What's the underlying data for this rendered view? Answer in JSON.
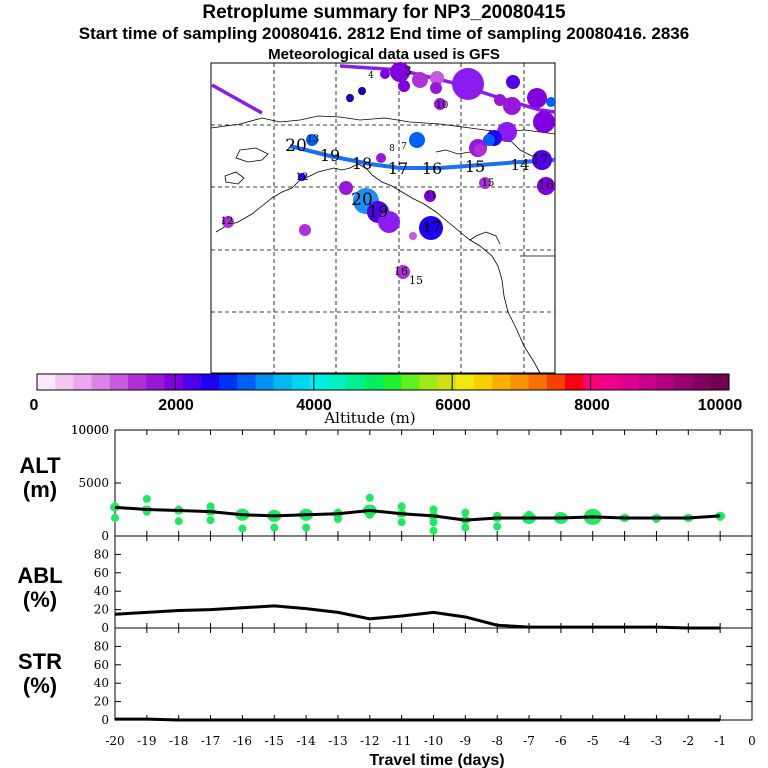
{
  "title": "Retroplume summary for NP3_20080415",
  "subtitle": "Start time of sampling 20080416.  2812     End time of sampling 20080416.  2836",
  "met_line": "Meteorological data used is GFS",
  "colorbar": {
    "label": "Altitude (m)",
    "ticks": [
      "0",
      "2000",
      "4000",
      "6000",
      "8000",
      "10000"
    ],
    "colors": [
      "#fce8fc",
      "#f4c8f4",
      "#eaa8ee",
      "#dc84e6",
      "#c858de",
      "#b030d8",
      "#9818d8",
      "#8000e0",
      "#5000e8",
      "#2000f0",
      "#0030f4",
      "#0060f4",
      "#0090f4",
      "#00b8f0",
      "#00d8f0",
      "#00f0e8",
      "#00f0c0",
      "#00f090",
      "#00f060",
      "#20f030",
      "#60f020",
      "#a0e818",
      "#d0e010",
      "#f0e810",
      "#f8d000",
      "#f8b000",
      "#f89000",
      "#f87000",
      "#f84000",
      "#f80010",
      "#f8007a",
      "#f0008a",
      "#e00090",
      "#c80088",
      "#b00080",
      "#980070",
      "#800060",
      "#700050"
    ]
  },
  "map_labels": [
    {
      "text": "20",
      "value": 20
    },
    {
      "text": "19",
      "value": 19
    },
    {
      "text": "18",
      "value": 18
    },
    {
      "text": "17",
      "value": 17
    },
    {
      "text": "16",
      "value": 16
    },
    {
      "text": "15",
      "value": 15
    },
    {
      "text": "14",
      "value": 14
    },
    {
      "text": "20",
      "value": 20
    },
    {
      "text": "19",
      "value": 19
    },
    {
      "text": "17",
      "value": 17
    },
    {
      "text": "16",
      "value": 16
    },
    {
      "text": "15",
      "value": 15
    },
    {
      "text": "12",
      "value": 12
    },
    {
      "text": "13",
      "value": 13
    },
    {
      "text": "5",
      "value": 5
    },
    {
      "text": "6",
      "value": 6
    },
    {
      "text": "8",
      "value": 8
    },
    {
      "text": "7",
      "value": 7
    },
    {
      "text": "4",
      "value": 4
    },
    {
      "text": "3",
      "value": 3
    },
    {
      "text": "10",
      "value": 10
    },
    {
      "text": "17",
      "value": 17
    },
    {
      "text": "16",
      "value": 16
    },
    {
      "text": "15",
      "value": 15
    },
    {
      "text": "11",
      "value": 11
    },
    {
      "text": "12",
      "value": 12
    }
  ],
  "panels": {
    "alt": {
      "line1": "ALT",
      "line2": "(m)"
    },
    "abl": {
      "line1": "ABL",
      "line2": "(%)"
    },
    "str": {
      "line1": "STR",
      "line2": "(%)"
    }
  },
  "chart_data": [
    {
      "type": "line",
      "panel": "ALT",
      "ylabel": "ALT (m)",
      "ylim": [
        0,
        10000
      ],
      "yticks": [
        0,
        5000,
        10000
      ],
      "xlim": [
        -20,
        0
      ],
      "x": [
        -20,
        -19,
        -18,
        -17,
        -16,
        -15,
        -14,
        -13,
        -12,
        -11,
        -10,
        -9,
        -8,
        -7,
        -6,
        -5,
        -4,
        -3,
        -2,
        -1
      ],
      "values": [
        2700,
        2500,
        2400,
        2300,
        2000,
        1900,
        2000,
        2100,
        2400,
        2100,
        1900,
        1500,
        1700,
        1700,
        1700,
        1800,
        1700,
        1700,
        1700,
        1900
      ],
      "scatter_points": [
        {
          "x": -20,
          "y": 2800
        },
        {
          "x": -20,
          "y": 1700
        },
        {
          "x": -19,
          "y": 3500
        },
        {
          "x": -19,
          "y": 2300
        },
        {
          "x": -18,
          "y": 2500
        },
        {
          "x": -18,
          "y": 1400
        },
        {
          "x": -17,
          "y": 2800
        },
        {
          "x": -17,
          "y": 1500
        },
        {
          "x": -16,
          "y": 2200
        },
        {
          "x": -16,
          "y": 700
        },
        {
          "x": -15,
          "y": 2000
        },
        {
          "x": -15,
          "y": 800
        },
        {
          "x": -14,
          "y": 1800
        },
        {
          "x": -14,
          "y": 800
        },
        {
          "x": -13,
          "y": 2200
        },
        {
          "x": -13,
          "y": 1600
        },
        {
          "x": -12,
          "y": 3600
        },
        {
          "x": -12,
          "y": 2000
        },
        {
          "x": -11,
          "y": 2800
        },
        {
          "x": -11,
          "y": 1300
        },
        {
          "x": -10,
          "y": 2500
        },
        {
          "x": -10,
          "y": 1300
        },
        {
          "x": -10,
          "y": 500
        },
        {
          "x": -9,
          "y": 2200
        },
        {
          "x": -9,
          "y": 800
        },
        {
          "x": -8,
          "y": 1900
        },
        {
          "x": -8,
          "y": 900
        },
        {
          "x": -7,
          "y": 2000
        },
        {
          "x": -6,
          "y": 1800
        },
        {
          "x": -5,
          "y": 1800
        },
        {
          "x": -4,
          "y": 1700
        },
        {
          "x": -3,
          "y": 1600
        },
        {
          "x": -2,
          "y": 1700
        },
        {
          "x": -1,
          "y": 1800
        }
      ]
    },
    {
      "type": "line",
      "panel": "ABL",
      "ylabel": "ABL (%)",
      "ylim": [
        0,
        100
      ],
      "yticks": [
        0,
        20,
        40,
        60,
        80
      ],
      "xlim": [
        -20,
        0
      ],
      "x": [
        -20,
        -19,
        -18,
        -17,
        -16,
        -15,
        -14,
        -13,
        -12,
        -11,
        -10,
        -9,
        -8,
        -7,
        -6,
        -5,
        -4,
        -3,
        -2,
        -1
      ],
      "values": [
        15,
        17,
        19,
        20,
        22,
        24,
        21,
        17,
        10,
        13,
        17,
        12,
        3,
        1,
        1,
        1,
        1,
        1,
        0,
        0
      ]
    },
    {
      "type": "line",
      "panel": "STR",
      "ylabel": "STR (%)",
      "xlabel": "Travel time (days)",
      "ylim": [
        0,
        100
      ],
      "yticks": [
        0,
        20,
        40,
        60,
        80
      ],
      "xlim": [
        -20,
        0
      ],
      "xticks": [
        -20,
        -19,
        -18,
        -17,
        -16,
        -15,
        -14,
        -13,
        -12,
        -11,
        -10,
        -9,
        -8,
        -7,
        -6,
        -5,
        -4,
        -3,
        -2,
        -1,
        0
      ],
      "x": [
        -20,
        -19,
        -18,
        -17,
        -16,
        -15,
        -14,
        -13,
        -12,
        -11,
        -10,
        -9,
        -8,
        -7,
        -6,
        -5,
        -4,
        -3,
        -2,
        -1
      ],
      "values": [
        1,
        1,
        0,
        0,
        0,
        0,
        0,
        0,
        0,
        0,
        0,
        0,
        0,
        0,
        0,
        0,
        0,
        0,
        0,
        0
      ]
    }
  ]
}
